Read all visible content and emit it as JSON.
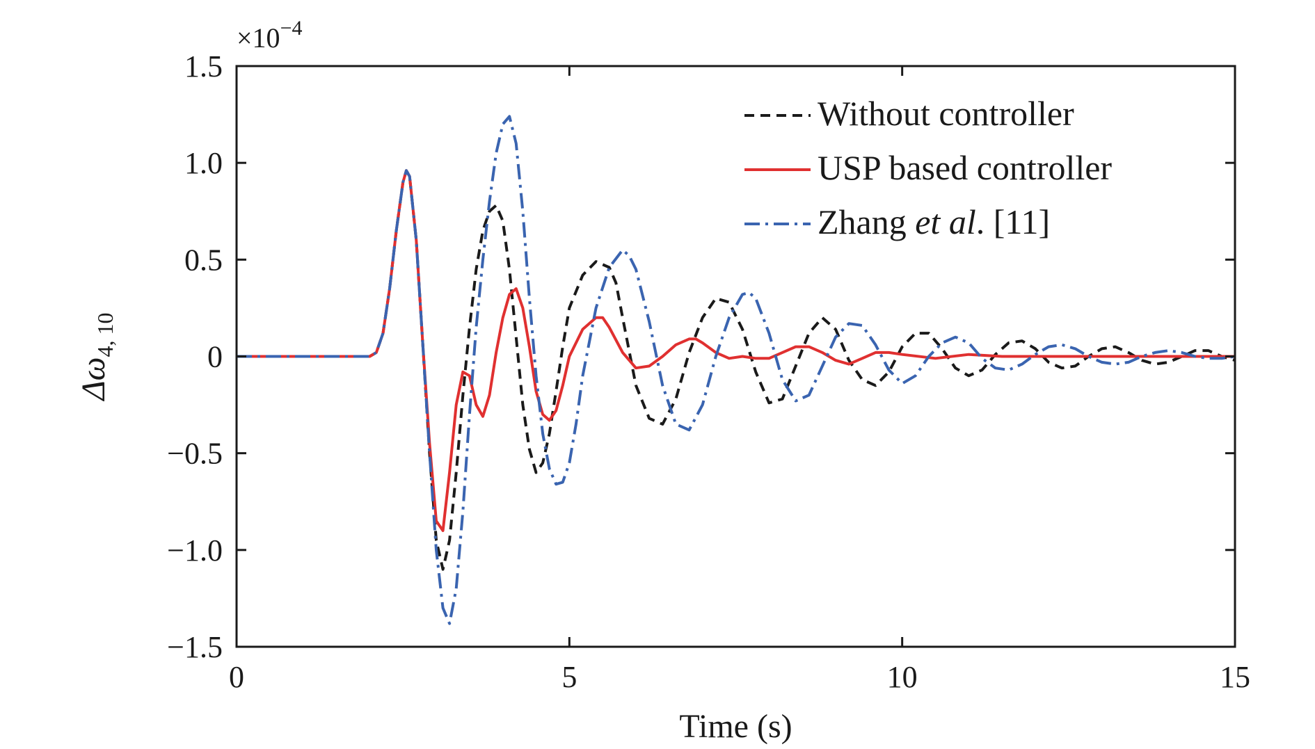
{
  "chart_data": {
    "type": "line",
    "title": "",
    "xlabel": "Time (s)",
    "ylabel": "Δω",
    "ylabel_subscript": "4, 10",
    "y_exponent": {
      "base": "×10",
      "power": "−4"
    },
    "xlim": [
      0,
      15
    ],
    "ylim": [
      -1.5,
      1.5
    ],
    "xticks": [
      0,
      5,
      10,
      15
    ],
    "xtick_labels": [
      "0",
      "5",
      "10",
      "15"
    ],
    "yticks": [
      -1.5,
      -1.0,
      -0.5,
      0,
      0.5,
      1.0,
      1.5
    ],
    "ytick_labels": [
      "−1.5",
      "−1.0",
      "−0.5",
      "0",
      "0.5",
      "1.0",
      "1.5"
    ],
    "grid": false,
    "legend_position": "top-right",
    "series": [
      {
        "name": "Without controller",
        "style": "dashed",
        "color": "#1a1a1a",
        "x": [
          0,
          2.0,
          2.1,
          2.2,
          2.3,
          2.4,
          2.5,
          2.55,
          2.6,
          2.7,
          2.8,
          2.9,
          3.0,
          3.1,
          3.2,
          3.3,
          3.4,
          3.5,
          3.6,
          3.7,
          3.8,
          3.9,
          4.0,
          4.1,
          4.2,
          4.3,
          4.4,
          4.5,
          4.6,
          4.7,
          4.8,
          4.9,
          5.0,
          5.2,
          5.4,
          5.6,
          5.7,
          5.8,
          6.0,
          6.2,
          6.4,
          6.6,
          6.8,
          7.0,
          7.2,
          7.4,
          7.6,
          7.8,
          8.0,
          8.2,
          8.4,
          8.6,
          8.8,
          9.0,
          9.2,
          9.4,
          9.6,
          9.8,
          10.0,
          10.2,
          10.4,
          10.6,
          10.8,
          11.0,
          11.2,
          11.4,
          11.6,
          11.8,
          12.0,
          12.2,
          12.4,
          12.6,
          12.8,
          13.0,
          13.2,
          13.4,
          13.6,
          13.8,
          14.0,
          14.2,
          14.4,
          14.6,
          14.8,
          15.0
        ],
        "y": [
          0,
          0,
          0.02,
          0.12,
          0.35,
          0.65,
          0.9,
          0.96,
          0.93,
          0.6,
          0.05,
          -0.5,
          -0.95,
          -1.1,
          -0.95,
          -0.6,
          -0.2,
          0.15,
          0.45,
          0.65,
          0.75,
          0.78,
          0.7,
          0.45,
          0.1,
          -0.25,
          -0.48,
          -0.6,
          -0.55,
          -0.4,
          -0.18,
          0.05,
          0.25,
          0.42,
          0.49,
          0.46,
          0.38,
          0.2,
          -0.15,
          -0.32,
          -0.35,
          -0.22,
          0.02,
          0.2,
          0.3,
          0.28,
          0.14,
          -0.08,
          -0.24,
          -0.22,
          -0.05,
          0.12,
          0.2,
          0.14,
          -0.02,
          -0.12,
          -0.15,
          -0.08,
          0.05,
          0.12,
          0.12,
          0.04,
          -0.06,
          -0.1,
          -0.07,
          0.01,
          0.07,
          0.08,
          0.04,
          -0.03,
          -0.06,
          -0.05,
          0.0,
          0.04,
          0.05,
          0.02,
          -0.02,
          -0.04,
          -0.03,
          0.0,
          0.03,
          0.03,
          0.0,
          -0.02
        ]
      },
      {
        "name": "USP based controller",
        "style": "solid",
        "color": "#e03030",
        "x": [
          0,
          2.0,
          2.1,
          2.2,
          2.3,
          2.4,
          2.5,
          2.55,
          2.6,
          2.7,
          2.8,
          2.9,
          3.0,
          3.1,
          3.2,
          3.3,
          3.4,
          3.5,
          3.6,
          3.7,
          3.8,
          3.9,
          4.0,
          4.1,
          4.2,
          4.3,
          4.4,
          4.5,
          4.6,
          4.7,
          4.8,
          4.9,
          5.0,
          5.2,
          5.4,
          5.5,
          5.6,
          5.8,
          6.0,
          6.2,
          6.4,
          6.6,
          6.8,
          6.9,
          7.0,
          7.2,
          7.4,
          7.6,
          7.8,
          8.0,
          8.2,
          8.4,
          8.6,
          8.8,
          9.0,
          9.2,
          9.4,
          9.6,
          9.8,
          10.0,
          10.5,
          11.0,
          11.5,
          12.0,
          12.5,
          13.0,
          13.5,
          14.0,
          14.5,
          15.0
        ],
        "y": [
          0,
          0,
          0.02,
          0.12,
          0.35,
          0.65,
          0.9,
          0.96,
          0.93,
          0.6,
          0.05,
          -0.45,
          -0.85,
          -0.9,
          -0.6,
          -0.25,
          -0.08,
          -0.1,
          -0.25,
          -0.31,
          -0.2,
          0.02,
          0.2,
          0.32,
          0.35,
          0.25,
          0.05,
          -0.18,
          -0.3,
          -0.33,
          -0.28,
          -0.15,
          0.0,
          0.14,
          0.2,
          0.2,
          0.15,
          0.02,
          -0.06,
          -0.05,
          0.0,
          0.06,
          0.09,
          0.09,
          0.07,
          0.02,
          -0.01,
          0.0,
          -0.01,
          -0.01,
          0.02,
          0.05,
          0.05,
          0.02,
          -0.02,
          -0.04,
          -0.01,
          0.02,
          0.02,
          0.01,
          -0.01,
          0.01,
          0.0,
          0.0,
          0.0,
          0.0,
          0.0,
          0.0,
          0.0,
          0.0
        ]
      },
      {
        "name": "Zhang et al. [11]",
        "style": "dashdot",
        "color": "#3a64b0",
        "x": [
          0,
          2.0,
          2.1,
          2.2,
          2.3,
          2.4,
          2.5,
          2.55,
          2.6,
          2.7,
          2.8,
          2.9,
          3.0,
          3.1,
          3.2,
          3.3,
          3.4,
          3.5,
          3.6,
          3.7,
          3.8,
          3.9,
          4.0,
          4.1,
          4.2,
          4.3,
          4.4,
          4.5,
          4.6,
          4.7,
          4.8,
          4.9,
          5.0,
          5.1,
          5.2,
          5.4,
          5.6,
          5.8,
          5.9,
          6.0,
          6.2,
          6.4,
          6.6,
          6.8,
          7.0,
          7.2,
          7.4,
          7.6,
          7.7,
          7.8,
          8.0,
          8.2,
          8.4,
          8.6,
          8.8,
          9.0,
          9.2,
          9.4,
          9.6,
          9.8,
          10.0,
          10.2,
          10.4,
          10.6,
          10.8,
          11.0,
          11.2,
          11.4,
          11.6,
          11.8,
          12.0,
          12.2,
          12.4,
          12.6,
          12.8,
          13.0,
          13.2,
          13.4,
          13.6,
          13.8,
          14.0,
          14.2,
          14.4,
          14.6,
          14.8,
          15.0
        ],
        "y": [
          0,
          0,
          0.02,
          0.12,
          0.35,
          0.65,
          0.9,
          0.96,
          0.93,
          0.6,
          0.05,
          -0.5,
          -1.0,
          -1.3,
          -1.38,
          -1.2,
          -0.8,
          -0.3,
          0.15,
          0.5,
          0.8,
          1.05,
          1.2,
          1.24,
          1.1,
          0.75,
          0.3,
          -0.1,
          -0.4,
          -0.58,
          -0.66,
          -0.65,
          -0.55,
          -0.35,
          -0.1,
          0.25,
          0.46,
          0.55,
          0.52,
          0.45,
          0.18,
          -0.15,
          -0.35,
          -0.38,
          -0.25,
          0.0,
          0.2,
          0.32,
          0.33,
          0.3,
          0.12,
          -0.12,
          -0.23,
          -0.2,
          -0.05,
          0.1,
          0.17,
          0.16,
          0.06,
          -0.07,
          -0.14,
          -0.1,
          0.0,
          0.07,
          0.1,
          0.07,
          -0.01,
          -0.06,
          -0.07,
          -0.04,
          0.01,
          0.05,
          0.06,
          0.04,
          0.0,
          -0.03,
          -0.04,
          -0.03,
          0.0,
          0.02,
          0.03,
          0.02,
          0.0,
          -0.01,
          -0.01,
          0.0
        ]
      }
    ]
  },
  "legend": {
    "items": [
      {
        "label_parts": [
          {
            "text": "Without controller",
            "italic": false
          }
        ]
      },
      {
        "label_parts": [
          {
            "text": "USP based controller",
            "italic": false
          }
        ]
      },
      {
        "label_parts": [
          {
            "text": "Zhang ",
            "italic": false
          },
          {
            "text": "et al",
            "italic": true
          },
          {
            "text": ". [11]",
            "italic": false
          }
        ]
      }
    ]
  }
}
